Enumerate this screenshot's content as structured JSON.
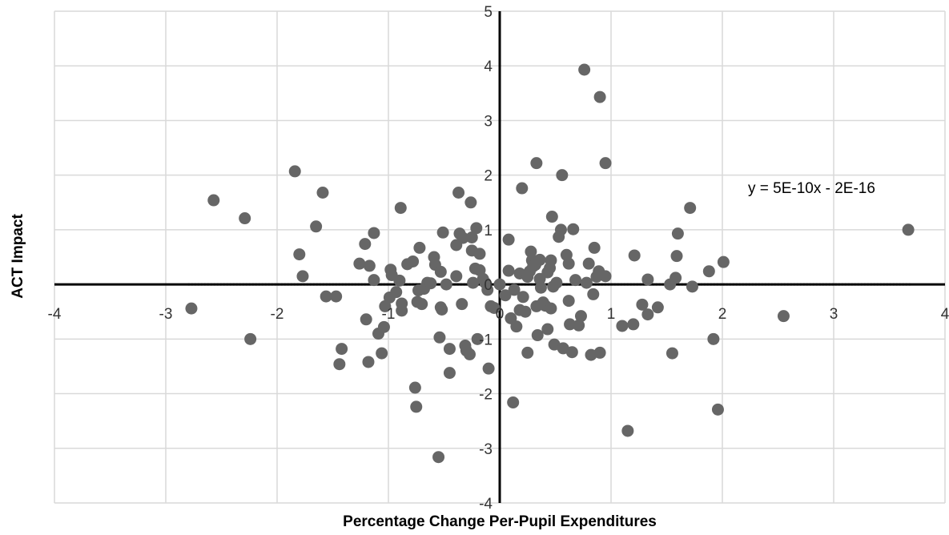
{
  "chart_data": {
    "type": "scatter",
    "xlabel": "Percentage Change Per-Pupil Expenditures",
    "ylabel": "ACT Impact",
    "xlim": [
      -4,
      4
    ],
    "ylim": [
      -4,
      5
    ],
    "x_ticks": [
      -4,
      -3,
      -2,
      -1,
      0,
      1,
      2,
      3,
      4
    ],
    "y_ticks": [
      -4,
      -3,
      -2,
      -1,
      0,
      1,
      2,
      3,
      4,
      5
    ],
    "x_tick_labels": [
      "-4",
      "-3",
      "-2",
      "-1",
      "0",
      "1",
      "2",
      "3",
      "4"
    ],
    "y_tick_labels": [
      "-4",
      "-3",
      "-2",
      "-1",
      "0",
      "1",
      "2",
      "3",
      "4",
      "5"
    ],
    "grid": true,
    "legend": "none",
    "annotation": "y = 5E-10x - 2E-16",
    "trendline": {
      "slope": 5e-10,
      "intercept": 0,
      "style": "dotted"
    },
    "marker_color": "#666666",
    "series": [
      {
        "points": [
          [
            -2.77,
            -0.44
          ],
          [
            -2.57,
            1.54
          ],
          [
            -2.29,
            1.21
          ],
          [
            -2.24,
            -1.0
          ],
          [
            -1.84,
            2.07
          ],
          [
            -1.8,
            0.55
          ],
          [
            -1.77,
            0.15
          ],
          [
            -1.65,
            1.06
          ],
          [
            -1.59,
            1.68
          ],
          [
            -1.56,
            -0.22
          ],
          [
            -1.47,
            -0.22
          ],
          [
            -1.44,
            -1.46
          ],
          [
            -1.42,
            -1.18
          ],
          [
            -1.26,
            0.38
          ],
          [
            -1.21,
            0.74
          ],
          [
            -1.2,
            -0.64
          ],
          [
            -1.18,
            -1.42
          ],
          [
            -1.17,
            0.34
          ],
          [
            -1.13,
            0.94
          ],
          [
            -1.13,
            0.08
          ],
          [
            -1.09,
            -0.9
          ],
          [
            -1.06,
            -1.26
          ],
          [
            -1.04,
            -0.78
          ],
          [
            -1.03,
            -0.4
          ],
          [
            -0.99,
            -0.24
          ],
          [
            -0.98,
            0.27
          ],
          [
            -0.97,
            0.17
          ],
          [
            -0.93,
            -0.14
          ],
          [
            -0.9,
            0.07
          ],
          [
            -0.89,
            1.4
          ],
          [
            -0.88,
            -0.35
          ],
          [
            -0.88,
            -0.48
          ],
          [
            -0.83,
            0.37
          ],
          [
            -0.78,
            0.42
          ],
          [
            -0.76,
            -1.89
          ],
          [
            -0.75,
            -2.24
          ],
          [
            -0.74,
            -0.32
          ],
          [
            -0.73,
            -0.11
          ],
          [
            -0.72,
            0.67
          ],
          [
            -0.7,
            -0.36
          ],
          [
            -0.68,
            -0.08
          ],
          [
            -0.65,
            0.03
          ],
          [
            -0.62,
            0.02
          ],
          [
            -0.59,
            0.5
          ],
          [
            -0.58,
            0.36
          ],
          [
            -0.55,
            -3.16
          ],
          [
            -0.54,
            -0.97
          ],
          [
            -0.53,
            0.23
          ],
          [
            -0.53,
            -0.42
          ],
          [
            -0.52,
            -0.46
          ],
          [
            -0.51,
            0.95
          ],
          [
            -0.48,
            0.0
          ],
          [
            -0.45,
            -1.18
          ],
          [
            -0.45,
            -1.62
          ],
          [
            -0.39,
            0.15
          ],
          [
            -0.39,
            0.72
          ],
          [
            -0.37,
            1.68
          ],
          [
            -0.36,
            0.93
          ],
          [
            -0.34,
            -0.36
          ],
          [
            -0.33,
            0.85
          ],
          [
            -0.31,
            -1.12
          ],
          [
            -0.3,
            -1.21
          ],
          [
            -0.27,
            -1.28
          ],
          [
            -0.26,
            1.5
          ],
          [
            -0.25,
            0.62
          ],
          [
            -0.25,
            0.86
          ],
          [
            -0.24,
            0.03
          ],
          [
            -0.22,
            0.29
          ],
          [
            -0.21,
            1.03
          ],
          [
            -0.2,
            -1.0
          ],
          [
            -0.18,
            0.26
          ],
          [
            -0.18,
            0.56
          ],
          [
            -0.15,
            0.1
          ],
          [
            -0.13,
            0.03
          ],
          [
            -0.11,
            -0.1
          ],
          [
            -0.1,
            -1.54
          ],
          [
            -0.08,
            -0.4
          ],
          [
            -0.05,
            -0.43
          ],
          [
            0.0,
            0.0
          ],
          [
            0.05,
            -0.2
          ],
          [
            0.08,
            0.25
          ],
          [
            0.08,
            0.82
          ],
          [
            0.1,
            -0.62
          ],
          [
            0.12,
            -2.16
          ],
          [
            0.13,
            -0.1
          ],
          [
            0.15,
            -0.77
          ],
          [
            0.18,
            0.2
          ],
          [
            0.18,
            -0.47
          ],
          [
            0.2,
            1.76
          ],
          [
            0.21,
            -0.23
          ],
          [
            0.23,
            -0.5
          ],
          [
            0.25,
            -1.25
          ],
          [
            0.25,
            0.14
          ],
          [
            0.27,
            0.24
          ],
          [
            0.28,
            0.6
          ],
          [
            0.29,
            0.44
          ],
          [
            0.3,
            0.33
          ],
          [
            0.32,
            0.36
          ],
          [
            0.33,
            -0.4
          ],
          [
            0.33,
            2.22
          ],
          [
            0.34,
            -0.93
          ],
          [
            0.36,
            0.1
          ],
          [
            0.36,
            0.45
          ],
          [
            0.37,
            -0.06
          ],
          [
            0.39,
            -0.33
          ],
          [
            0.41,
            -0.39
          ],
          [
            0.43,
            -0.82
          ],
          [
            0.43,
            0.22
          ],
          [
            0.45,
            0.3
          ],
          [
            0.46,
            0.44
          ],
          [
            0.46,
            -0.44
          ],
          [
            0.47,
            1.24
          ],
          [
            0.48,
            -0.04
          ],
          [
            0.49,
            -1.1
          ],
          [
            0.51,
            0.03
          ],
          [
            0.53,
            0.87
          ],
          [
            0.55,
            1.0
          ],
          [
            0.56,
            2.0
          ],
          [
            0.57,
            -1.17
          ],
          [
            0.6,
            0.54
          ],
          [
            0.62,
            0.38
          ],
          [
            0.62,
            -0.3
          ],
          [
            0.63,
            -0.73
          ],
          [
            0.65,
            -1.24
          ],
          [
            0.66,
            1.01
          ],
          [
            0.68,
            0.08
          ],
          [
            0.71,
            -0.75
          ],
          [
            0.73,
            -0.58
          ],
          [
            0.76,
            3.93
          ],
          [
            0.78,
            0.03
          ],
          [
            0.8,
            0.38
          ],
          [
            0.82,
            -1.29
          ],
          [
            0.84,
            -0.18
          ],
          [
            0.85,
            0.67
          ],
          [
            0.87,
            0.14
          ],
          [
            0.89,
            0.24
          ],
          [
            0.9,
            -1.25
          ],
          [
            0.9,
            3.43
          ],
          [
            0.95,
            0.15
          ],
          [
            0.95,
            2.22
          ],
          [
            1.1,
            -0.76
          ],
          [
            1.2,
            -0.73
          ],
          [
            1.21,
            0.53
          ],
          [
            1.28,
            -0.37
          ],
          [
            1.33,
            -0.55
          ],
          [
            1.42,
            -0.42
          ],
          [
            1.53,
            0.0
          ],
          [
            1.55,
            -1.26
          ],
          [
            1.58,
            0.12
          ],
          [
            1.59,
            0.52
          ],
          [
            1.6,
            0.93
          ],
          [
            1.71,
            1.4
          ],
          [
            1.73,
            -0.04
          ],
          [
            1.88,
            0.24
          ],
          [
            1.92,
            -1.0
          ],
          [
            1.96,
            -2.29
          ],
          [
            2.01,
            0.41
          ],
          [
            2.55,
            -0.58
          ],
          [
            3.67,
            1.0
          ],
          [
            1.15,
            -2.68
          ],
          [
            1.33,
            0.09
          ]
        ]
      }
    ]
  }
}
